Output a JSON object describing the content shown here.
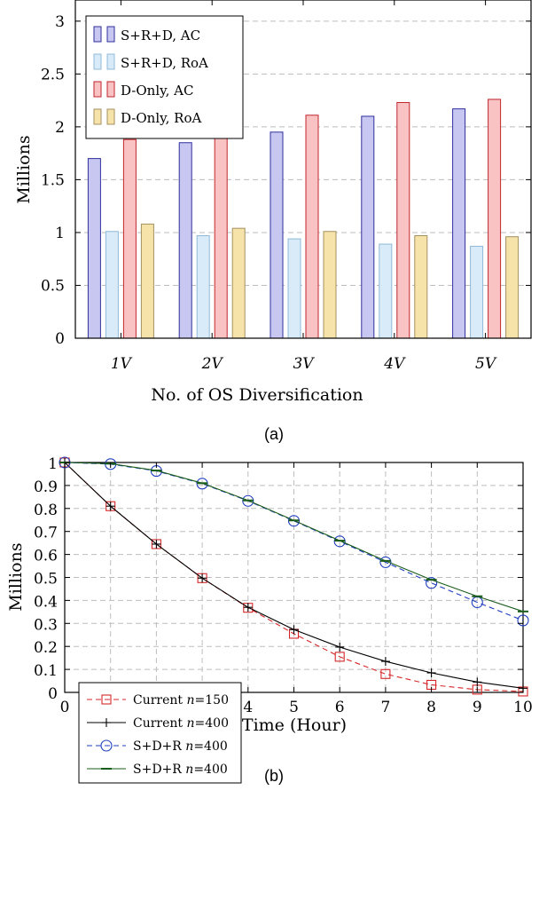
{
  "chart_data": [
    {
      "type": "bar",
      "caption": "(a)",
      "xlabel": "No. of OS Diversification",
      "ylabel": "Millions",
      "categories": [
        "1V",
        "2V",
        "3V",
        "4V",
        "5V"
      ],
      "yticks": [
        "0",
        "0.5",
        "1",
        "1.5",
        "2",
        "2.5",
        "3"
      ],
      "ylim": [
        0,
        3.2
      ],
      "grid": true,
      "legend_position": "top-left",
      "series": [
        {
          "name": "S+R+D, AC",
          "color": "#c7c7f2",
          "stroke": "#2f2f9e",
          "values": [
            1.7,
            1.85,
            1.95,
            2.1,
            2.17
          ]
        },
        {
          "name": "S+R+D, RoA",
          "color": "#d9ebf8",
          "stroke": "#8fb8d8",
          "values": [
            1.01,
            0.97,
            0.94,
            0.89,
            0.87
          ]
        },
        {
          "name": "D-Only, AC",
          "color": "#f9c3c3",
          "stroke": "#c0262d",
          "values": [
            1.88,
            2.0,
            2.11,
            2.23,
            2.26
          ]
        },
        {
          "name": "D-Only, RoA",
          "color": "#f5e3a9",
          "stroke": "#a59061",
          "values": [
            1.08,
            1.04,
            1.01,
            0.97,
            0.96
          ]
        }
      ]
    },
    {
      "type": "line",
      "caption": "(b)",
      "xlabel": "Time (Hour)",
      "ylabel": "Millions",
      "x": [
        0,
        1,
        2,
        3,
        4,
        5,
        6,
        7,
        8,
        9,
        10
      ],
      "xticks": [
        "0",
        "1",
        "2",
        "3",
        "4",
        "5",
        "6",
        "7",
        "8",
        "9",
        "10"
      ],
      "yticks": [
        "0",
        "0.1",
        "0.2",
        "0.3",
        "0.4",
        "0.5",
        "0.6",
        "0.7",
        "0.8",
        "0.9",
        "1"
      ],
      "xlim": [
        0,
        10
      ],
      "ylim": [
        0,
        1
      ],
      "grid": true,
      "legend_position": "bottom-left",
      "series": [
        {
          "name": "Current n=150",
          "legend_prefix": "Current ",
          "legend_italic": "n",
          "legend_suffix": "=150",
          "color": "#d62728",
          "dash": "6 4",
          "marker": "square",
          "values": [
            1.0,
            0.81,
            0.645,
            0.497,
            0.368,
            0.255,
            0.155,
            0.08,
            0.033,
            0.012,
            0.004
          ]
        },
        {
          "name": "Current n=400",
          "legend_prefix": "Current ",
          "legend_italic": "n",
          "legend_suffix": "=400",
          "color": "#000000",
          "dash": "",
          "marker": "plus",
          "values": [
            1.0,
            0.81,
            0.645,
            0.497,
            0.37,
            0.273,
            0.197,
            0.135,
            0.085,
            0.045,
            0.018
          ]
        },
        {
          "name": "S+D+R n=400",
          "legend_prefix": "S+D+R ",
          "legend_italic": "n",
          "legend_suffix": "=400",
          "color": "#1f3fbf",
          "dash": "6 4",
          "marker": "circle",
          "values": [
            1.0,
            0.993,
            0.963,
            0.908,
            0.833,
            0.746,
            0.657,
            0.566,
            0.476,
            0.392,
            0.313
          ]
        },
        {
          "name": "S+D+R n=400",
          "legend_prefix": "S+D+R ",
          "legend_italic": "n",
          "legend_suffix": "=400",
          "color": "#1a5c1a",
          "dash": "",
          "marker": "dash",
          "values": [
            1.0,
            0.995,
            0.965,
            0.91,
            0.835,
            0.748,
            0.66,
            0.572,
            0.49,
            0.418,
            0.352
          ]
        }
      ]
    }
  ]
}
